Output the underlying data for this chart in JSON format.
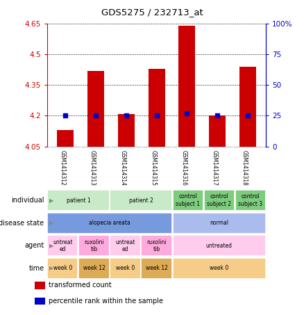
{
  "title": "GDS5275 / 232713_at",
  "samples": [
    "GSM1414312",
    "GSM1414313",
    "GSM1414314",
    "GSM1414315",
    "GSM1414316",
    "GSM1414317",
    "GSM1414318"
  ],
  "transformed_count": [
    4.13,
    4.42,
    4.21,
    4.43,
    4.64,
    4.2,
    4.44
  ],
  "percentile_rank": [
    25,
    25,
    25,
    25,
    27,
    25,
    25
  ],
  "y_min": 4.05,
  "y_max": 4.65,
  "y_ticks": [
    4.05,
    4.2,
    4.35,
    4.5,
    4.65
  ],
  "y2_ticks": [
    0,
    25,
    50,
    75,
    100
  ],
  "bar_color": "#cc0000",
  "dot_color": "#0000cc",
  "bg_color": "#ffffff",
  "individual_colors": [
    "#c8eac8",
    "#c8eac8",
    "#7fcc7f",
    "#90dd90",
    "#90dd90"
  ],
  "disease_colors": [
    "#7799dd",
    "#99bbee"
  ],
  "agent_colors": [
    "#ffccee",
    "#ffaadd",
    "#ffccee",
    "#ffaadd",
    "#ffccee"
  ],
  "time_colors": [
    "#f5cc88",
    "#ddaa55",
    "#f5cc88",
    "#ddaa55",
    "#f5cc88"
  ],
  "annotation_rows": [
    {
      "label": "individual",
      "cells": [
        {
          "text": "patient 1",
          "span": 2,
          "color": "#c8eac8"
        },
        {
          "text": "patient 2",
          "span": 2,
          "color": "#c8eac8"
        },
        {
          "text": "control\nsubject 1",
          "span": 1,
          "color": "#7fcc7f"
        },
        {
          "text": "control\nsubject 2",
          "span": 1,
          "color": "#7fcc7f"
        },
        {
          "text": "control\nsubject 3",
          "span": 1,
          "color": "#7fcc7f"
        }
      ]
    },
    {
      "label": "disease state",
      "cells": [
        {
          "text": "alopecia areata",
          "span": 4,
          "color": "#7799dd"
        },
        {
          "text": "normal",
          "span": 3,
          "color": "#aabbee"
        }
      ]
    },
    {
      "label": "agent",
      "cells": [
        {
          "text": "untreat\ned",
          "span": 1,
          "color": "#ffccee"
        },
        {
          "text": "ruxolini\ntib",
          "span": 1,
          "color": "#ffaadd"
        },
        {
          "text": "untreat\ned",
          "span": 1,
          "color": "#ffccee"
        },
        {
          "text": "ruxolini\ntib",
          "span": 1,
          "color": "#ffaadd"
        },
        {
          "text": "untreated",
          "span": 3,
          "color": "#ffccee"
        }
      ]
    },
    {
      "label": "time",
      "cells": [
        {
          "text": "week 0",
          "span": 1,
          "color": "#f5cc88"
        },
        {
          "text": "week 12",
          "span": 1,
          "color": "#ddaa55"
        },
        {
          "text": "week 0",
          "span": 1,
          "color": "#f5cc88"
        },
        {
          "text": "week 12",
          "span": 1,
          "color": "#ddaa55"
        },
        {
          "text": "week 0",
          "span": 3,
          "color": "#f5cc88"
        }
      ]
    }
  ],
  "legend": [
    {
      "color": "#cc0000",
      "label": "transformed count"
    },
    {
      "color": "#0000cc",
      "label": "percentile rank within the sample"
    }
  ]
}
